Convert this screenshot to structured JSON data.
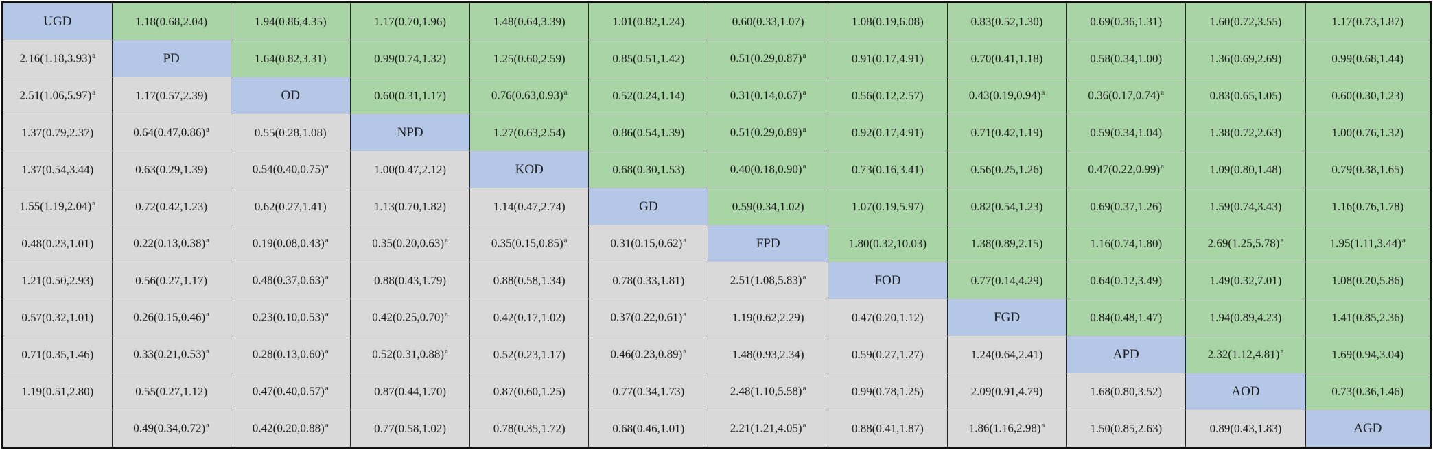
{
  "treatments": [
    "UGD",
    "PD",
    "OD",
    "NPD",
    "KOD",
    "GD",
    "FPD",
    "FOD",
    "FGD",
    "APD",
    "AOD",
    "AGD"
  ],
  "matrix": [
    [
      "UGD",
      "1.18(0.68,2.04)",
      "1.94(0.86,4.35)",
      "1.17(0.70,1.96)",
      "1.48(0.64,3.39)",
      "1.01(0.82,1.24)",
      "0.60(0.33,1.07)",
      "1.08(0.19,6.08)",
      "0.83(0.52,1.30)",
      "0.69(0.36,1.31)",
      "1.60(0.72,3.55)",
      "1.17(0.73,1.87)"
    ],
    [
      "2.16(1.18,3.93)a",
      "PD",
      "1.64(0.82,3.31)",
      "0.99(0.74,1.32)",
      "1.25(0.60,2.59)",
      "0.85(0.51,1.42)",
      "0.51(0.29,0.87)a",
      "0.91(0.17,4.91)",
      "0.70(0.41,1.18)",
      "0.58(0.34,1.00)",
      "1.36(0.69,2.69)",
      "0.99(0.68,1.44)"
    ],
    [
      "2.51(1.06,5.97)a",
      "1.17(0.57,2.39)",
      "OD",
      "0.60(0.31,1.17)",
      "0.76(0.63,0.93)a",
      "0.52(0.24,1.14)",
      "0.31(0.14,0.67)a",
      "0.56(0.12,2.57)",
      "0.43(0.19,0.94)a",
      "0.36(0.17,0.74)a",
      "0.83(0.65,1.05)",
      "0.60(0.30,1.23)"
    ],
    [
      "1.37(0.79,2.37)",
      "0.64(0.47,0.86)a",
      "0.55(0.28,1.08)",
      "NPD",
      "1.27(0.63,2.54)",
      "0.86(0.54,1.39)",
      "0.51(0.29,0.89)a",
      "0.92(0.17,4.91)",
      "0.71(0.42,1.19)",
      "0.59(0.34,1.04)",
      "1.38(0.72,2.63)",
      "1.00(0.76,1.32)"
    ],
    [
      "1.37(0.54,3.44)",
      "0.63(0.29,1.39)",
      "0.54(0.40,0.75)a",
      "1.00(0.47,2.12)",
      "KOD",
      "0.68(0.30,1.53)",
      "0.40(0.18,0.90)a",
      "0.73(0.16,3.41)",
      "0.56(0.25,1.26)",
      "0.47(0.22,0.99)a",
      "1.09(0.80,1.48)",
      "0.79(0.38,1.65)"
    ],
    [
      "1.55(1.19,2.04)a",
      "0.72(0.42,1.23)",
      "0.62(0.27,1.41)",
      "1.13(0.70,1.82)",
      "1.14(0.47,2.74)",
      "GD",
      "0.59(0.34,1.02)",
      "1.07(0.19,5.97)",
      "0.82(0.54,1.23)",
      "0.69(0.37,1.26)",
      "1.59(0.74,3.43)",
      "1.16(0.76,1.78)"
    ],
    [
      "0.48(0.23,1.01)",
      "0.22(0.13,0.38)a",
      "0.19(0.08,0.43)a",
      "0.35(0.20,0.63)a",
      "0.35(0.15,0.85)a",
      "0.31(0.15,0.62)a",
      "FPD",
      "1.80(0.32,10.03)",
      "1.38(0.89,2.15)",
      "1.16(0.74,1.80)",
      "2.69(1.25,5.78)a",
      "1.95(1.11,3.44)a"
    ],
    [
      "1.21(0.50,2.93)",
      "0.56(0.27,1.17)",
      "0.48(0.37,0.63)a",
      "0.88(0.43,1.79)",
      "0.88(0.58,1.34)",
      "0.78(0.33,1.81)",
      "2.51(1.08,5.83)a",
      "FOD",
      "0.77(0.14,4.29)",
      "0.64(0.12,3.49)",
      "1.49(0.32,7.01)",
      "1.08(0.20,5.86)"
    ],
    [
      "0.57(0.32,1.01)",
      "0.26(0.15,0.46)a",
      "0.23(0.10,0.53)a",
      "0.42(0.25,0.70)a",
      "0.42(0.17,1.02)",
      "0.37(0.22,0.61)a",
      "1.19(0.62,2.29)",
      "0.47(0.20,1.12)",
      "FGD",
      "0.84(0.48,1.47)",
      "1.94(0.89,4.23)",
      "1.41(0.85,2.36)"
    ],
    [
      "0.71(0.35,1.46)",
      "0.33(0.21,0.53)a",
      "0.28(0.13,0.60)a",
      "0.52(0.31,0.88)a",
      "0.52(0.23,1.17)",
      "0.46(0.23,0.89)a",
      "1.48(0.93,2.34)",
      "0.59(0.27,1.27)",
      "1.24(0.64,2.41)",
      "APD",
      "2.32(1.12,4.81)a",
      "1.69(0.94,3.04)"
    ],
    [
      "1.19(0.51,2.80)",
      "0.55(0.27,1.12)",
      "0.47(0.40,0.57)a",
      "0.87(0.44,1.70)",
      "0.87(0.60,1.25)",
      "0.77(0.34,1.73)",
      "2.48(1.10,5.58)a",
      "0.99(0.78,1.25)",
      "2.09(0.91,4.79)",
      "1.68(0.80,3.52)",
      "AOD",
      "0.73(0.36,1.46)"
    ],
    [
      "",
      "0.49(0.34,0.72)a",
      "0.42(0.20,0.88)a",
      "0.77(0.58,1.02)",
      "0.78(0.35,1.72)",
      "0.68(0.46,1.01)",
      "2.21(1.21,4.05)a",
      "0.88(0.41,1.87)",
      "1.86(1.16,2.98)a",
      "1.50(0.85,2.63)",
      "0.89(0.43,1.83)",
      "AGD"
    ]
  ],
  "colors": {
    "diagonal": "#b4c7e7",
    "upper_triangle": "#a9d4a5",
    "lower_triangle": "#d9d9d9"
  }
}
